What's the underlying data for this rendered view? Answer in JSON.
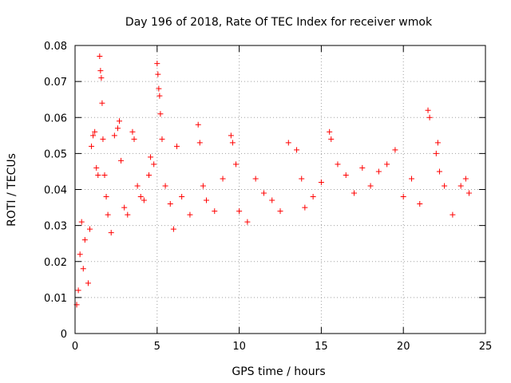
{
  "chart_data": {
    "type": "scatter",
    "title": "Day 196 of 2018, Rate Of TEC Index for receiver wmok",
    "xlabel": "GPS time / hours",
    "ylabel": "ROTI / TECUs",
    "xlim": [
      0,
      25
    ],
    "ylim": [
      0,
      0.08
    ],
    "xticks": [
      0,
      5,
      10,
      15,
      20,
      25
    ],
    "xtick_labels": [
      "0",
      "5",
      "10",
      "15",
      "20",
      "25"
    ],
    "yticks": [
      0,
      0.01,
      0.02,
      0.03,
      0.04,
      0.05,
      0.06,
      0.07,
      0.08
    ],
    "ytick_labels": [
      "0",
      "0.01",
      "0.02",
      "0.03",
      "0.04",
      "0.05",
      "0.06",
      "0.07",
      "0.08"
    ],
    "grid": true,
    "marker": "+",
    "color": "#ff0000",
    "series": [
      {
        "points": [
          [
            0.1,
            0.008
          ],
          [
            0.2,
            0.012
          ],
          [
            0.3,
            0.022
          ],
          [
            0.4,
            0.031
          ],
          [
            0.5,
            0.018
          ],
          [
            0.6,
            0.026
          ],
          [
            0.8,
            0.014
          ],
          [
            0.9,
            0.029
          ],
          [
            1.0,
            0.052
          ],
          [
            1.1,
            0.055
          ],
          [
            1.2,
            0.056
          ],
          [
            1.3,
            0.046
          ],
          [
            1.4,
            0.044
          ],
          [
            1.5,
            0.077
          ],
          [
            1.55,
            0.073
          ],
          [
            1.6,
            0.071
          ],
          [
            1.65,
            0.064
          ],
          [
            1.7,
            0.054
          ],
          [
            1.8,
            0.044
          ],
          [
            1.9,
            0.038
          ],
          [
            2.0,
            0.033
          ],
          [
            2.2,
            0.028
          ],
          [
            2.4,
            0.055
          ],
          [
            2.6,
            0.057
          ],
          [
            2.7,
            0.059
          ],
          [
            2.8,
            0.048
          ],
          [
            3.0,
            0.035
          ],
          [
            3.2,
            0.033
          ],
          [
            3.5,
            0.056
          ],
          [
            3.6,
            0.054
          ],
          [
            3.8,
            0.041
          ],
          [
            4.0,
            0.038
          ],
          [
            4.2,
            0.037
          ],
          [
            4.5,
            0.044
          ],
          [
            4.6,
            0.049
          ],
          [
            4.8,
            0.047
          ],
          [
            5.0,
            0.075
          ],
          [
            5.05,
            0.072
          ],
          [
            5.1,
            0.068
          ],
          [
            5.15,
            0.066
          ],
          [
            5.2,
            0.061
          ],
          [
            5.3,
            0.054
          ],
          [
            5.5,
            0.041
          ],
          [
            5.8,
            0.036
          ],
          [
            6.0,
            0.029
          ],
          [
            6.2,
            0.052
          ],
          [
            6.5,
            0.038
          ],
          [
            7.0,
            0.033
          ],
          [
            7.5,
            0.058
          ],
          [
            7.6,
            0.053
          ],
          [
            7.8,
            0.041
          ],
          [
            8.0,
            0.037
          ],
          [
            8.5,
            0.034
          ],
          [
            9.0,
            0.043
          ],
          [
            9.5,
            0.055
          ],
          [
            9.6,
            0.053
          ],
          [
            9.8,
            0.047
          ],
          [
            10.0,
            0.034
          ],
          [
            10.5,
            0.031
          ],
          [
            11.0,
            0.043
          ],
          [
            11.5,
            0.039
          ],
          [
            12.0,
            0.037
          ],
          [
            12.5,
            0.034
          ],
          [
            13.0,
            0.053
          ],
          [
            13.5,
            0.051
          ],
          [
            13.8,
            0.043
          ],
          [
            14.0,
            0.035
          ],
          [
            14.5,
            0.038
          ],
          [
            15.0,
            0.042
          ],
          [
            15.5,
            0.056
          ],
          [
            15.6,
            0.054
          ],
          [
            16.0,
            0.047
          ],
          [
            16.5,
            0.044
          ],
          [
            17.0,
            0.039
          ],
          [
            17.5,
            0.046
          ],
          [
            18.0,
            0.041
          ],
          [
            18.5,
            0.045
          ],
          [
            19.0,
            0.047
          ],
          [
            19.5,
            0.051
          ],
          [
            20.0,
            0.038
          ],
          [
            20.5,
            0.043
          ],
          [
            21.0,
            0.036
          ],
          [
            21.5,
            0.062
          ],
          [
            21.6,
            0.06
          ],
          [
            22.0,
            0.05
          ],
          [
            22.1,
            0.053
          ],
          [
            22.2,
            0.045
          ],
          [
            22.5,
            0.041
          ],
          [
            23.0,
            0.033
          ],
          [
            23.5,
            0.041
          ],
          [
            23.8,
            0.043
          ],
          [
            24.0,
            0.039
          ]
        ]
      }
    ]
  }
}
